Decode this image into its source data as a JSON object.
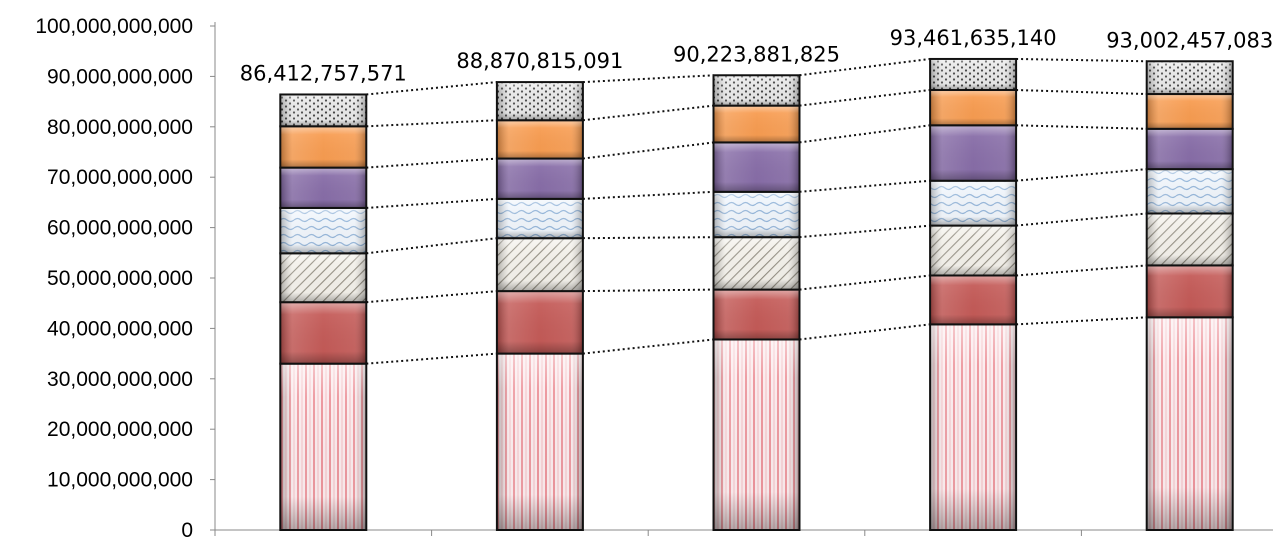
{
  "chart_data": {
    "type": "bar",
    "stacked": true,
    "categories": [
      "",
      "",
      "",
      "",
      ""
    ],
    "totals": [
      86412757571,
      88870815091,
      90223881825,
      93461635140,
      93002457083
    ],
    "total_labels": [
      "86,412,757,571",
      "88,870,815,091",
      "90,223,881,825",
      "93,461,635,140",
      "93,002,457,083"
    ],
    "ylim": [
      0,
      100000000000
    ],
    "yticks": [
      0,
      10000000000,
      20000000000,
      30000000000,
      40000000000,
      50000000000,
      60000000000,
      70000000000,
      80000000000,
      90000000000,
      100000000000
    ],
    "ytick_labels": [
      "0",
      "10,000,000,000",
      "20,000,000,000",
      "30,000,000,000",
      "40,000,000,000",
      "50,000,000,000",
      "60,000,000,000",
      "70,000,000,000",
      "80,000,000,000",
      "90,000,000,000",
      "100,000,000,000"
    ],
    "grid": false,
    "legend": "none",
    "connector_lines": "dotted",
    "series": [
      {
        "values": [
          33000000000,
          35000000000,
          37800000000,
          40800000000,
          42200000000
        ],
        "color": "#f2b8be",
        "pattern": "vertical-stripes"
      },
      {
        "values": [
          12200000000,
          12400000000,
          9900000000,
          9700000000,
          10300000000
        ],
        "color": "#c0504d",
        "pattern": "solid"
      },
      {
        "values": [
          9700000000,
          10500000000,
          10400000000,
          9900000000,
          10300000000
        ],
        "color": "#d8d4cc",
        "pattern": "diagonal-stripes"
      },
      {
        "values": [
          9000000000,
          7800000000,
          9000000000,
          8900000000,
          8800000000
        ],
        "color": "#dbe8f5",
        "pattern": "waves"
      },
      {
        "values": [
          8000000000,
          8000000000,
          9800000000,
          11000000000,
          8000000000
        ],
        "color": "#8064a2",
        "pattern": "solid"
      },
      {
        "values": [
          8200000000,
          7600000000,
          7300000000,
          7000000000,
          6900000000
        ],
        "color": "#f79646",
        "pattern": "solid"
      },
      {
        "values": [
          6312757571,
          7570815091,
          6023881825,
          6161635140,
          6502457083
        ],
        "color": "#d9d9d9",
        "pattern": "dots"
      }
    ]
  }
}
